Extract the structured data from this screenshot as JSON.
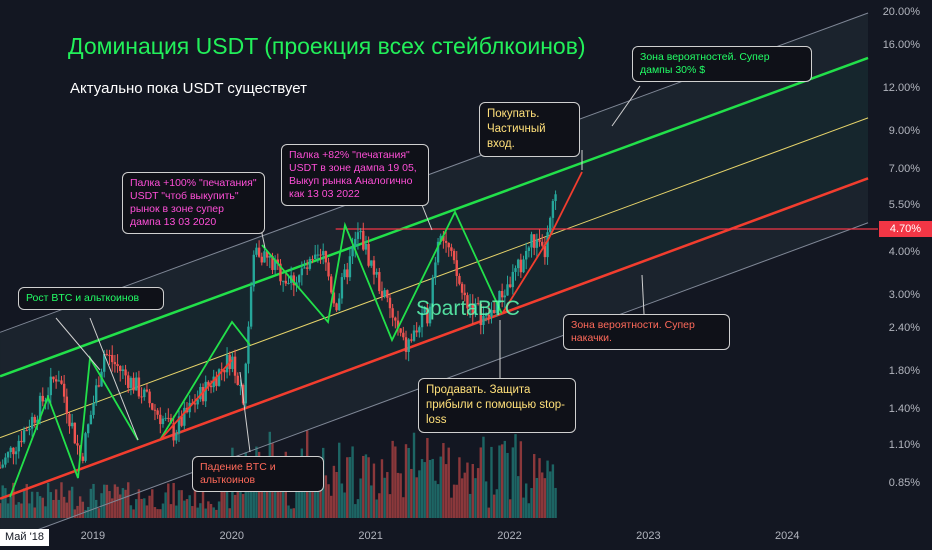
{
  "header": {
    "title": "Доминация USDT (проекция всех стейблкоинов)",
    "subtitle": "Актуально пока USDT существует"
  },
  "watermark": "SpartaBTC",
  "callouts": {
    "btc_rise": "Рост BTC и альткоинов",
    "print100": "Палка +100% \"печатания\" USDT \"чтоб выкупить\" рынок в зоне супер дампа 13 03 2020",
    "print82": "Палка +82% \"печатания\" USDT в зоне дампа 19 05, Выкуп рынка Аналогично как  13 03 2022",
    "buy": "Покупать. Частичный вход.",
    "prob_top": "Зона вероятностей. Супер дампы 30% $",
    "btc_fall": "Падение BTC и альткоинов",
    "sell": "Продавать. Защита прибыли с помощью stop-loss",
    "prob_bottom": "Зона вероятности. Супер накачки."
  },
  "axis": {
    "y_ticks": [
      "20.00%",
      "16.00%",
      "12.00%",
      "9.00%",
      "7.00%",
      "5.50%",
      "4.00%",
      "3.00%",
      "2.40%",
      "1.80%",
      "1.40%",
      "1.10%",
      "0.85%"
    ],
    "x_ticks": [
      "2019",
      "2020",
      "2021",
      "2022",
      "2023",
      "2024"
    ],
    "x_start_label": "Май '18",
    "current_price_label": "4.70%"
  },
  "colors": {
    "background": "#131722",
    "title": "#22f05a",
    "upper_line": "#22e04a",
    "lower_line": "#f23d2e",
    "mid_line": "#e6d36a",
    "outer_line": "#7f8796",
    "candle_up": "#26a69a",
    "candle_down": "#ef5350",
    "green_callout": "#22ff66",
    "pink_callout": "#ff4fd8",
    "yellow_callout": "#ffe07a",
    "red_callout": "#ff6a5a",
    "price_tag": "#f23645"
  },
  "chart_data": {
    "type": "candlestick",
    "title": "Доминация USDT (проекция всех стейблкоинов)",
    "y_scale": "log",
    "ylim": [
      0.75,
      20.0
    ],
    "xlim": [
      "2018-05",
      "2024-08"
    ],
    "current_value": 4.7,
    "price_path": [
      [
        "2018-05",
        0.95
      ],
      [
        "2018-08",
        1.35
      ],
      [
        "2018-10",
        1.8
      ],
      [
        "2018-12",
        1.0
      ],
      [
        "2019-02",
        2.05
      ],
      [
        "2019-05",
        1.6
      ],
      [
        "2019-08",
        1.2
      ],
      [
        "2019-10",
        1.5
      ],
      [
        "2020-01",
        2.0
      ],
      [
        "2020-02",
        1.55
      ],
      [
        "2020-03",
        4.2
      ],
      [
        "2020-06",
        3.3
      ],
      [
        "2020-09",
        3.9
      ],
      [
        "2020-10",
        2.8
      ],
      [
        "2020-12",
        4.6
      ],
      [
        "2021-02",
        3.1
      ],
      [
        "2021-04",
        2.1
      ],
      [
        "2021-06",
        2.7
      ],
      [
        "2021-07",
        4.9
      ],
      [
        "2021-09",
        3.0
      ],
      [
        "2021-11",
        2.55
      ],
      [
        "2022-02",
        3.7
      ],
      [
        "2022-03",
        4.4
      ],
      [
        "2022-04",
        3.9
      ],
      [
        "2022-05",
        5.9
      ]
    ],
    "channel": {
      "upper_line": [
        [
          "2018-05",
          1.75
        ],
        [
          "2024-08",
          14.8
        ]
      ],
      "lower_line": [
        [
          "2018-05",
          0.77
        ],
        [
          "2024-08",
          6.6
        ]
      ],
      "middle_line": [
        [
          "2018-05",
          1.16
        ],
        [
          "2024-08",
          9.9
        ]
      ],
      "outer_upper": [
        [
          "2018-05",
          2.35
        ],
        [
          "2024-08",
          20.0
        ]
      ],
      "outer_lower": [
        [
          "2018-05",
          0.57
        ],
        [
          "2024-08",
          4.9
        ]
      ]
    },
    "horizontal_level": 4.7
  }
}
